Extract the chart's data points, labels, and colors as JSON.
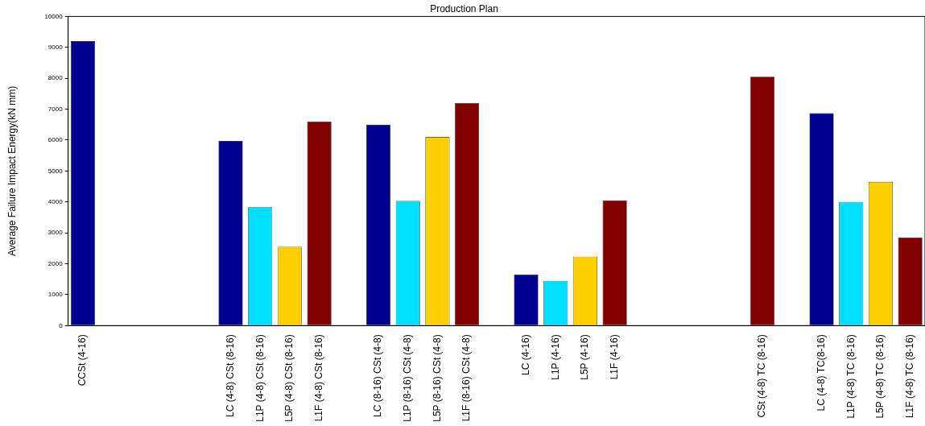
{
  "chart_data": {
    "type": "bar",
    "title": "Production Plan",
    "ylabel": "Average Failure Impact Energy(kN mm)",
    "categories": [
      "CCSt (4-16)",
      null,
      null,
      null,
      null,
      "LC (4-8) CSt (8-16)",
      "L1P (4-8) CSt (8-16)",
      "L5P (4-8) CSt (8-16)",
      "L1F (4-8) CSt (8-16)",
      null,
      "LC (8-16) CSt (4-8)",
      "L1P (8-16) CSt (4-8)",
      "L5P (8-16) CSt (4-8)",
      "L1F (8-16) CSt (4-8)",
      null,
      "LC (4-16)",
      "L1P (4-16)",
      "L5P (4-16)",
      "L1F (4-16)",
      null,
      null,
      null,
      null,
      "CSt (4-8) TC (8-16)",
      null,
      "LC (4-8) TC(8-16)",
      "L1P (4-8) TC (8-16)",
      "L5P (4-8) TC (8-16)",
      "L1F (4-8) TC (8-16)"
    ],
    "values": [
      9200,
      null,
      null,
      null,
      null,
      5970,
      3830,
      2550,
      6600,
      null,
      6500,
      4030,
      6100,
      7200,
      null,
      1650,
      1450,
      2230,
      4050,
      null,
      null,
      null,
      null,
      8050,
      null,
      6870,
      4000,
      4650,
      2850
    ],
    "colors": [
      "#00008f",
      "#00008f",
      "#00008f",
      "#00008f",
      "#ffffff",
      "#00008f",
      "#00dfff",
      "#ffcf00",
      "#800000",
      "#ffffff",
      "#00008f",
      "#00dfff",
      "#ffcf00",
      "#800000",
      "#ffffff",
      "#00008f",
      "#00dfff",
      "#ffcf00",
      "#800000",
      "#ffffff",
      "#800000",
      "#800000",
      "#800000",
      "#800000",
      "#ffffff",
      "#00008f",
      "#00dfff",
      "#ffcf00",
      "#800000"
    ],
    "ylim": [
      0,
      10000
    ],
    "yticks": [
      0,
      1000,
      2000,
      3000,
      4000,
      5000,
      6000,
      7000,
      8000,
      9000,
      10000
    ],
    "grid": false,
    "legend": false
  }
}
